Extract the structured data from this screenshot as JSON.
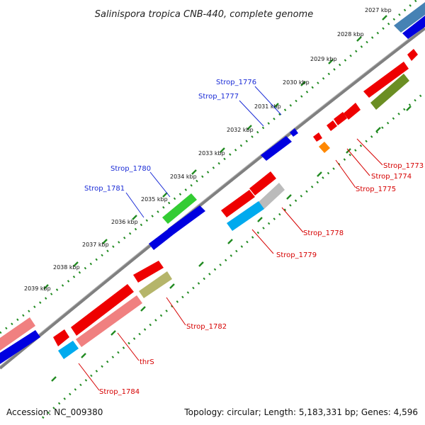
{
  "title": "Salinispora tropica CNB-440, complete genome",
  "footer": {
    "accession": "Accession: NC_009380",
    "summary": "Topology: circular; Length: 5,183,331 bp; Genes: 4,596"
  },
  "kbp_ticks": [
    "2027 kbp",
    "2028 kbp",
    "2029 kbp",
    "2030 kbp",
    "2031 kbp",
    "2032 kbp",
    "2033 kbp",
    "2034 kbp",
    "2035 kbp",
    "2036 kbp",
    "2037 kbp",
    "2038 kbp",
    "2039 kbp"
  ],
  "gene_labels": {
    "blue": [
      "Strop_1776",
      "Strop_1777",
      "Strop_1780",
      "Strop_1781"
    ],
    "red": [
      "Strop_1773",
      "Strop_1774",
      "Strop_1775",
      "Strop_1778",
      "Strop_1779",
      "Strop_1782",
      "thrS",
      "Strop_1784"
    ]
  },
  "colors": {
    "blue_gene": "#0000e0",
    "red_gene": "#ee0000",
    "light_red": "#f08080",
    "green_gene": "#33cc33",
    "olive_gene": "#6b8e23",
    "khaki_gene": "#b5b56a",
    "cyan_gene": "#00aaee",
    "grey_gene": "#bbbbbb",
    "orange_gene": "#ff8800",
    "steel_blue": "#4682b4",
    "backbone": "#808080",
    "tick_green": "#228b22",
    "blue_label": "#1a2bd6",
    "red_label": "#d60000"
  }
}
